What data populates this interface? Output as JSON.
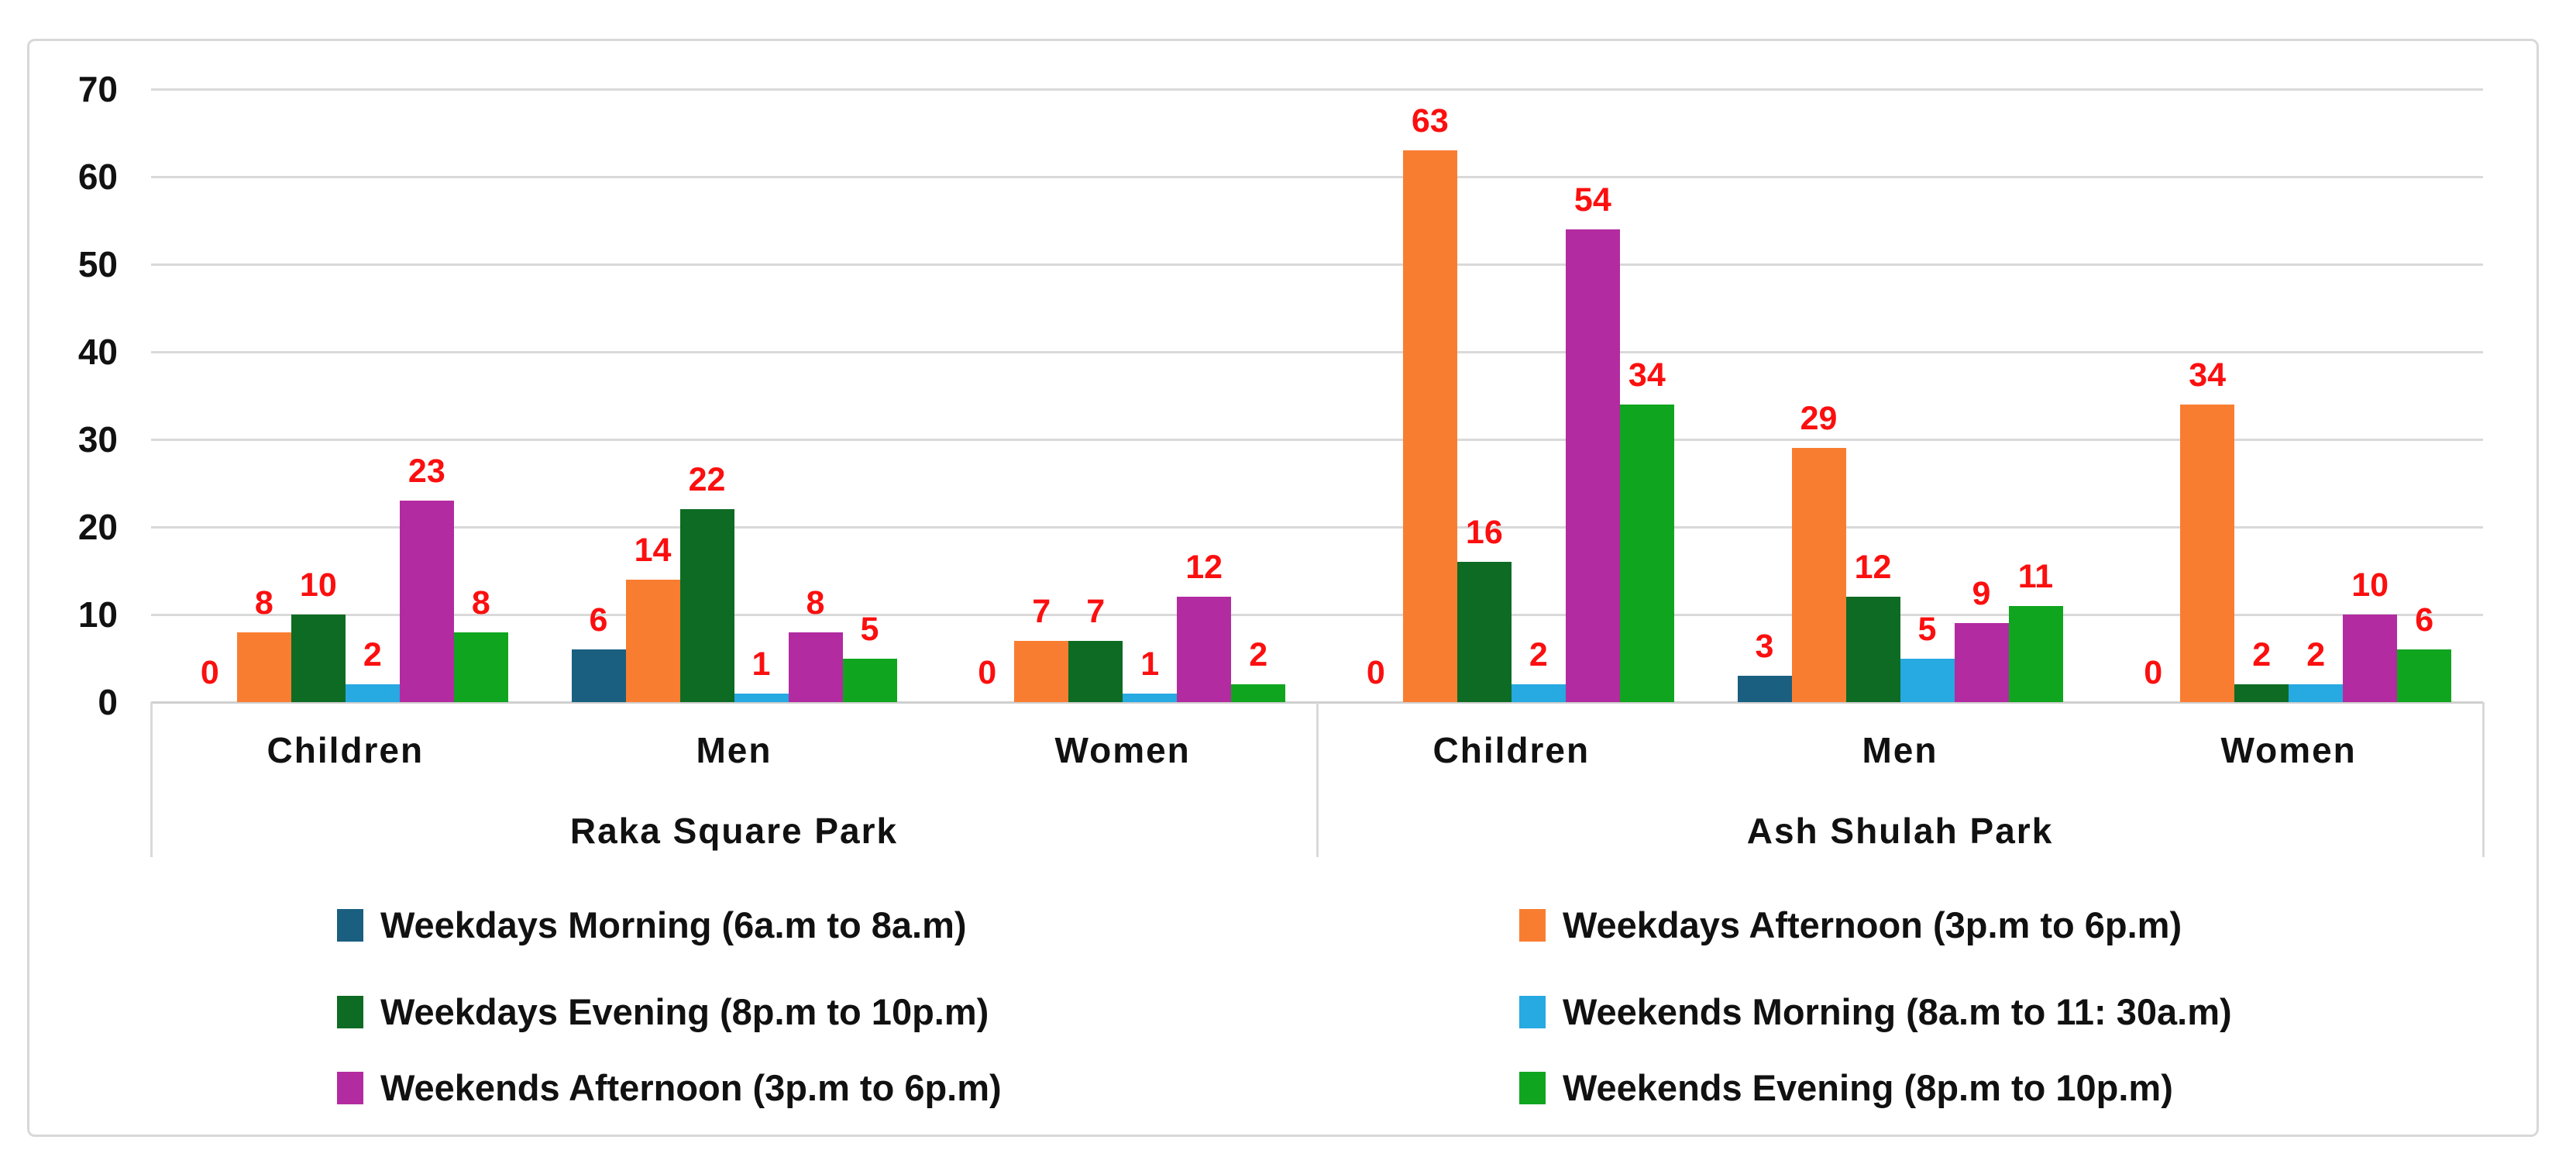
{
  "chart_data": {
    "type": "bar",
    "title": "",
    "xlabel": "",
    "ylabel": "",
    "ylim": [
      0,
      70
    ],
    "yticks": [
      0,
      10,
      20,
      30,
      40,
      50,
      60,
      70
    ],
    "grid": true,
    "legend_position": "bottom-two-columns",
    "value_label_color": "#FB0F0F",
    "axis_text_color": "#111111",
    "gridline_color": "#D9D9D9",
    "parks": [
      "Raka Square Park",
      "Ash Shulah Park"
    ],
    "categories": [
      "Children",
      "Men",
      "Women"
    ],
    "group_order_note": "values arrays are ordered [Raka-Children, Raka-Men, Raka-Women, Ash-Children, Ash-Men, Ash-Women]",
    "series": [
      {
        "name": "Weekdays Morning (6a.m to 8a.m)",
        "color": "#1A5F80",
        "values": [
          0,
          6,
          0,
          0,
          3,
          0
        ]
      },
      {
        "name": "Weekdays Afternoon (3p.m to 6p.m)",
        "color": "#F97D31",
        "values": [
          8,
          14,
          7,
          63,
          29,
          34
        ]
      },
      {
        "name": "Weekdays Evening (8p.m to 10p.m)",
        "color": "#0E6B23",
        "values": [
          10,
          22,
          7,
          16,
          12,
          2
        ]
      },
      {
        "name": "Weekends Morning (8a.m to 11: 30a.m)",
        "color": "#27A9E1",
        "values": [
          2,
          1,
          1,
          2,
          5,
          2
        ]
      },
      {
        "name": "Weekends Afternoon (3p.m to 6p.m)",
        "color": "#B32BA0",
        "values": [
          23,
          8,
          12,
          54,
          9,
          10
        ]
      },
      {
        "name": "Weekends Evening (8p.m to 10p.m)",
        "color": "#10A51F",
        "values": [
          8,
          5,
          2,
          34,
          11,
          6
        ]
      }
    ],
    "legend_columns": [
      [
        0,
        2,
        4
      ],
      [
        1,
        3,
        5
      ]
    ]
  }
}
